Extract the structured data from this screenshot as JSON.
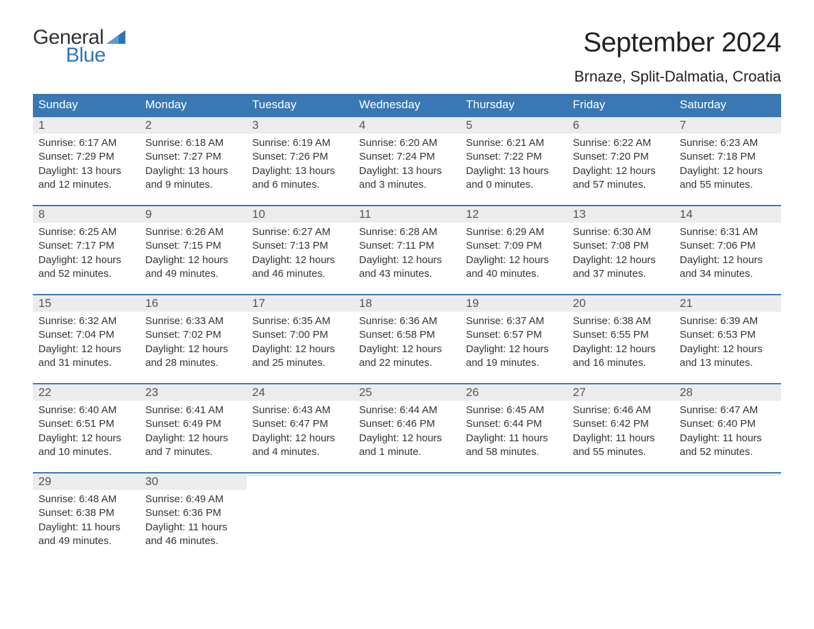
{
  "logo": {
    "text1": "General",
    "text2": "Blue",
    "flag_color": "#2e75b6"
  },
  "title": "September 2024",
  "location": "Brnaze, Split-Dalmatia, Croatia",
  "colors": {
    "header_bg": "#3a78b5",
    "header_text": "#ffffff",
    "daynum_bg": "#ececec",
    "week_border": "#3a78b5",
    "body_text": "#333333",
    "logo_blue": "#2e75b6"
  },
  "weekdays": [
    "Sunday",
    "Monday",
    "Tuesday",
    "Wednesday",
    "Thursday",
    "Friday",
    "Saturday"
  ],
  "weeks": [
    [
      {
        "n": "1",
        "sunrise": "Sunrise: 6:17 AM",
        "sunset": "Sunset: 7:29 PM",
        "day1": "Daylight: 13 hours",
        "day2": "and 12 minutes."
      },
      {
        "n": "2",
        "sunrise": "Sunrise: 6:18 AM",
        "sunset": "Sunset: 7:27 PM",
        "day1": "Daylight: 13 hours",
        "day2": "and 9 minutes."
      },
      {
        "n": "3",
        "sunrise": "Sunrise: 6:19 AM",
        "sunset": "Sunset: 7:26 PM",
        "day1": "Daylight: 13 hours",
        "day2": "and 6 minutes."
      },
      {
        "n": "4",
        "sunrise": "Sunrise: 6:20 AM",
        "sunset": "Sunset: 7:24 PM",
        "day1": "Daylight: 13 hours",
        "day2": "and 3 minutes."
      },
      {
        "n": "5",
        "sunrise": "Sunrise: 6:21 AM",
        "sunset": "Sunset: 7:22 PM",
        "day1": "Daylight: 13 hours",
        "day2": "and 0 minutes."
      },
      {
        "n": "6",
        "sunrise": "Sunrise: 6:22 AM",
        "sunset": "Sunset: 7:20 PM",
        "day1": "Daylight: 12 hours",
        "day2": "and 57 minutes."
      },
      {
        "n": "7",
        "sunrise": "Sunrise: 6:23 AM",
        "sunset": "Sunset: 7:18 PM",
        "day1": "Daylight: 12 hours",
        "day2": "and 55 minutes."
      }
    ],
    [
      {
        "n": "8",
        "sunrise": "Sunrise: 6:25 AM",
        "sunset": "Sunset: 7:17 PM",
        "day1": "Daylight: 12 hours",
        "day2": "and 52 minutes."
      },
      {
        "n": "9",
        "sunrise": "Sunrise: 6:26 AM",
        "sunset": "Sunset: 7:15 PM",
        "day1": "Daylight: 12 hours",
        "day2": "and 49 minutes."
      },
      {
        "n": "10",
        "sunrise": "Sunrise: 6:27 AM",
        "sunset": "Sunset: 7:13 PM",
        "day1": "Daylight: 12 hours",
        "day2": "and 46 minutes."
      },
      {
        "n": "11",
        "sunrise": "Sunrise: 6:28 AM",
        "sunset": "Sunset: 7:11 PM",
        "day1": "Daylight: 12 hours",
        "day2": "and 43 minutes."
      },
      {
        "n": "12",
        "sunrise": "Sunrise: 6:29 AM",
        "sunset": "Sunset: 7:09 PM",
        "day1": "Daylight: 12 hours",
        "day2": "and 40 minutes."
      },
      {
        "n": "13",
        "sunrise": "Sunrise: 6:30 AM",
        "sunset": "Sunset: 7:08 PM",
        "day1": "Daylight: 12 hours",
        "day2": "and 37 minutes."
      },
      {
        "n": "14",
        "sunrise": "Sunrise: 6:31 AM",
        "sunset": "Sunset: 7:06 PM",
        "day1": "Daylight: 12 hours",
        "day2": "and 34 minutes."
      }
    ],
    [
      {
        "n": "15",
        "sunrise": "Sunrise: 6:32 AM",
        "sunset": "Sunset: 7:04 PM",
        "day1": "Daylight: 12 hours",
        "day2": "and 31 minutes."
      },
      {
        "n": "16",
        "sunrise": "Sunrise: 6:33 AM",
        "sunset": "Sunset: 7:02 PM",
        "day1": "Daylight: 12 hours",
        "day2": "and 28 minutes."
      },
      {
        "n": "17",
        "sunrise": "Sunrise: 6:35 AM",
        "sunset": "Sunset: 7:00 PM",
        "day1": "Daylight: 12 hours",
        "day2": "and 25 minutes."
      },
      {
        "n": "18",
        "sunrise": "Sunrise: 6:36 AM",
        "sunset": "Sunset: 6:58 PM",
        "day1": "Daylight: 12 hours",
        "day2": "and 22 minutes."
      },
      {
        "n": "19",
        "sunrise": "Sunrise: 6:37 AM",
        "sunset": "Sunset: 6:57 PM",
        "day1": "Daylight: 12 hours",
        "day2": "and 19 minutes."
      },
      {
        "n": "20",
        "sunrise": "Sunrise: 6:38 AM",
        "sunset": "Sunset: 6:55 PM",
        "day1": "Daylight: 12 hours",
        "day2": "and 16 minutes."
      },
      {
        "n": "21",
        "sunrise": "Sunrise: 6:39 AM",
        "sunset": "Sunset: 6:53 PM",
        "day1": "Daylight: 12 hours",
        "day2": "and 13 minutes."
      }
    ],
    [
      {
        "n": "22",
        "sunrise": "Sunrise: 6:40 AM",
        "sunset": "Sunset: 6:51 PM",
        "day1": "Daylight: 12 hours",
        "day2": "and 10 minutes."
      },
      {
        "n": "23",
        "sunrise": "Sunrise: 6:41 AM",
        "sunset": "Sunset: 6:49 PM",
        "day1": "Daylight: 12 hours",
        "day2": "and 7 minutes."
      },
      {
        "n": "24",
        "sunrise": "Sunrise: 6:43 AM",
        "sunset": "Sunset: 6:47 PM",
        "day1": "Daylight: 12 hours",
        "day2": "and 4 minutes."
      },
      {
        "n": "25",
        "sunrise": "Sunrise: 6:44 AM",
        "sunset": "Sunset: 6:46 PM",
        "day1": "Daylight: 12 hours",
        "day2": "and 1 minute."
      },
      {
        "n": "26",
        "sunrise": "Sunrise: 6:45 AM",
        "sunset": "Sunset: 6:44 PM",
        "day1": "Daylight: 11 hours",
        "day2": "and 58 minutes."
      },
      {
        "n": "27",
        "sunrise": "Sunrise: 6:46 AM",
        "sunset": "Sunset: 6:42 PM",
        "day1": "Daylight: 11 hours",
        "day2": "and 55 minutes."
      },
      {
        "n": "28",
        "sunrise": "Sunrise: 6:47 AM",
        "sunset": "Sunset: 6:40 PM",
        "day1": "Daylight: 11 hours",
        "day2": "and 52 minutes."
      }
    ],
    [
      {
        "n": "29",
        "sunrise": "Sunrise: 6:48 AM",
        "sunset": "Sunset: 6:38 PM",
        "day1": "Daylight: 11 hours",
        "day2": "and 49 minutes."
      },
      {
        "n": "30",
        "sunrise": "Sunrise: 6:49 AM",
        "sunset": "Sunset: 6:36 PM",
        "day1": "Daylight: 11 hours",
        "day2": "and 46 minutes."
      },
      {
        "empty": true
      },
      {
        "empty": true
      },
      {
        "empty": true
      },
      {
        "empty": true
      },
      {
        "empty": true
      }
    ]
  ]
}
